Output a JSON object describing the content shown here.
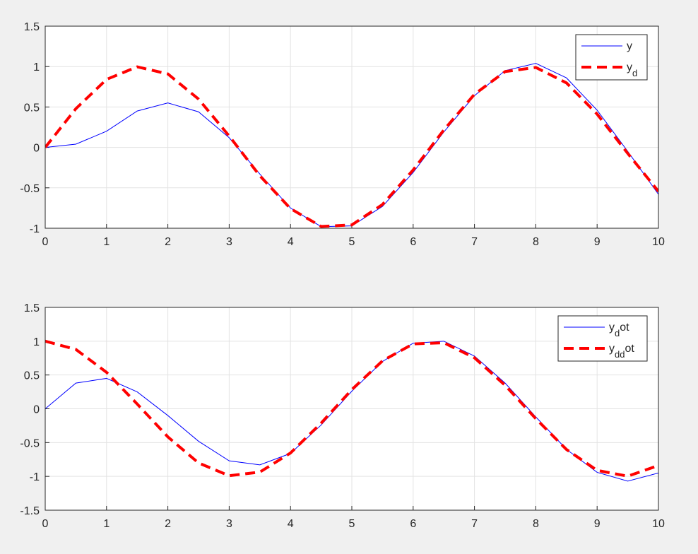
{
  "chart_data": [
    {
      "type": "line",
      "x": [
        0,
        0.5,
        1,
        1.5,
        2,
        2.5,
        3,
        3.5,
        4,
        4.5,
        5,
        5.5,
        6,
        6.5,
        7,
        7.5,
        8,
        8.5,
        9,
        9.5,
        10
      ],
      "series": [
        {
          "name": "y",
          "color": "#0000ff",
          "style": "solid",
          "values": [
            0,
            0.04,
            0.2,
            0.45,
            0.55,
            0.44,
            0.12,
            -0.33,
            -0.75,
            -0.98,
            -0.97,
            -0.73,
            -0.31,
            0.19,
            0.64,
            0.95,
            1.04,
            0.86,
            0.46,
            -0.05,
            -0.58
          ]
        },
        {
          "name": "y_d",
          "color": "#ff0000",
          "style": "dashed",
          "values": [
            0,
            0.479,
            0.841,
            0.997,
            0.909,
            0.598,
            0.141,
            -0.351,
            -0.757,
            -0.978,
            -0.959,
            -0.706,
            -0.279,
            0.215,
            0.657,
            0.938,
            0.989,
            0.798,
            0.412,
            -0.075,
            -0.544
          ]
        }
      ],
      "xlim": [
        0,
        10
      ],
      "xticks": [
        0,
        1,
        2,
        3,
        4,
        5,
        6,
        7,
        8,
        9,
        10
      ],
      "ylim": [
        -1,
        1.5
      ],
      "yticks": [
        -1,
        -0.5,
        0,
        0.5,
        1,
        1.5
      ],
      "grid": true,
      "legend": "northeast"
    },
    {
      "type": "line",
      "x": [
        0,
        0.5,
        1,
        1.5,
        2,
        2.5,
        3,
        3.5,
        4,
        4.5,
        5,
        5.5,
        6,
        6.5,
        7,
        7.5,
        8,
        8.5,
        9,
        9.5,
        10
      ],
      "series": [
        {
          "name": "y_dot",
          "color": "#0000ff",
          "style": "solid",
          "values": [
            0,
            0.38,
            0.45,
            0.25,
            -0.1,
            -0.48,
            -0.77,
            -0.83,
            -0.66,
            -0.24,
            0.26,
            0.7,
            0.97,
            1.0,
            0.78,
            0.38,
            -0.12,
            -0.6,
            -0.94,
            -1.07,
            -0.95
          ]
        },
        {
          "name": "y_{dd}ot",
          "color": "#ff0000",
          "style": "dashed",
          "values": [
            1,
            0.878,
            0.54,
            0.071,
            -0.416,
            -0.801,
            -0.99,
            -0.936,
            -0.654,
            -0.211,
            0.284,
            0.709,
            0.96,
            0.977,
            0.754,
            0.347,
            -0.146,
            -0.602,
            -0.911,
            -0.997,
            -0.839
          ]
        }
      ],
      "xlim": [
        0,
        10
      ],
      "xticks": [
        0,
        1,
        2,
        3,
        4,
        5,
        6,
        7,
        8,
        9,
        10
      ],
      "ylim": [
        -1.5,
        1.5
      ],
      "yticks": [
        -1.5,
        -1,
        -0.5,
        0,
        0.5,
        1,
        1.5
      ],
      "grid": true,
      "legend": "northeast"
    }
  ]
}
